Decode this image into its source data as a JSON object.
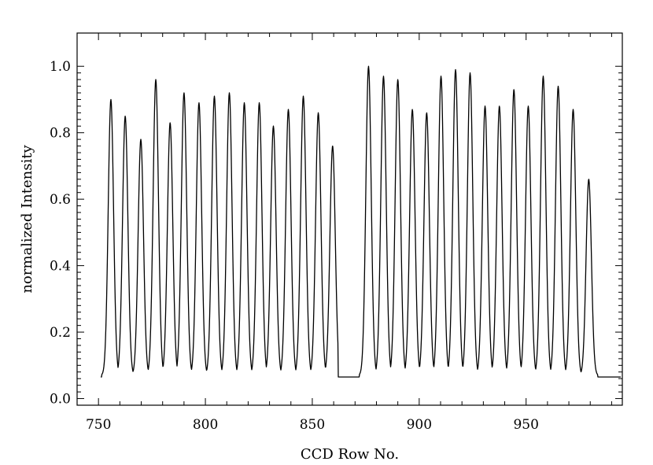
{
  "chart_data": {
    "type": "line",
    "title": "",
    "xlabel": "CCD Row No.",
    "ylabel": "normalized Intensity",
    "xlim": [
      740,
      995
    ],
    "ylim": [
      -0.02,
      1.1
    ],
    "grid": false,
    "legend": "none",
    "x_ticks": [
      750,
      800,
      850,
      900,
      950
    ],
    "y_ticks": [
      0.0,
      0.2,
      0.4,
      0.6,
      0.8,
      1.0
    ],
    "x_tick_labels": [
      "750",
      "800",
      "850",
      "900",
      "950"
    ],
    "y_tick_labels": [
      "0.0",
      "0.2",
      "0.4",
      "0.6",
      "0.8",
      "1.0"
    ],
    "baseline": 0.065,
    "trough_level": 0.07,
    "signal_ranges": [
      [
        751.5,
        862
      ],
      [
        872,
        983.5
      ]
    ],
    "series": [
      {
        "peaks": [
          {
            "x": 755.8,
            "y": 0.9
          },
          {
            "x": 762.5,
            "y": 0.85
          },
          {
            "x": 769.8,
            "y": 0.78
          },
          {
            "x": 776.8,
            "y": 0.96
          },
          {
            "x": 783.5,
            "y": 0.83
          },
          {
            "x": 790.0,
            "y": 0.92
          },
          {
            "x": 797.0,
            "y": 0.89
          },
          {
            "x": 804.2,
            "y": 0.91
          },
          {
            "x": 811.2,
            "y": 0.92
          },
          {
            "x": 818.2,
            "y": 0.89
          },
          {
            "x": 825.2,
            "y": 0.89
          },
          {
            "x": 831.8,
            "y": 0.82
          },
          {
            "x": 838.8,
            "y": 0.87
          },
          {
            "x": 845.8,
            "y": 0.91
          },
          {
            "x": 852.8,
            "y": 0.86
          },
          {
            "x": 859.5,
            "y": 0.76
          },
          {
            "x": 876.3,
            "y": 1.0
          },
          {
            "x": 883.3,
            "y": 0.97
          },
          {
            "x": 890.0,
            "y": 0.96
          },
          {
            "x": 896.8,
            "y": 0.87
          },
          {
            "x": 903.5,
            "y": 0.86
          },
          {
            "x": 910.2,
            "y": 0.97
          },
          {
            "x": 917.0,
            "y": 0.99
          },
          {
            "x": 923.8,
            "y": 0.98
          },
          {
            "x": 930.8,
            "y": 0.88
          },
          {
            "x": 937.5,
            "y": 0.88
          },
          {
            "x": 944.3,
            "y": 0.93
          },
          {
            "x": 951.0,
            "y": 0.88
          },
          {
            "x": 958.0,
            "y": 0.97
          },
          {
            "x": 965.0,
            "y": 0.94
          },
          {
            "x": 972.0,
            "y": 0.87
          },
          {
            "x": 979.3,
            "y": 0.66
          }
        ]
      }
    ]
  }
}
